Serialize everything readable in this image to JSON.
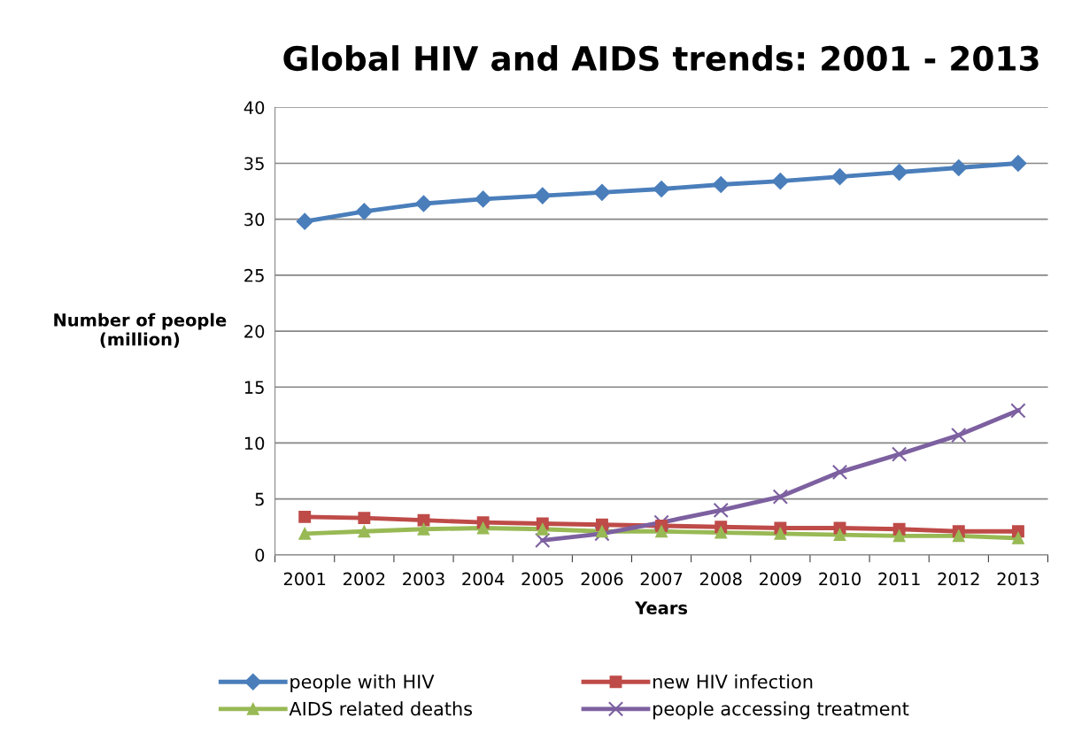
{
  "chart_data": {
    "type": "line",
    "title": "Global HIV and AIDS trends: 2001 - 2013",
    "xlabel": "Years",
    "ylabel": "Number of people\n(million)",
    "categories": [
      "2001",
      "2002",
      "2003",
      "2004",
      "2005",
      "2006",
      "2007",
      "2008",
      "2009",
      "2010",
      "2011",
      "2012",
      "2013"
    ],
    "series": [
      {
        "name": "people with HIV",
        "color": "#4a7ebb",
        "marker": "diamond",
        "values": [
          29.8,
          30.7,
          31.4,
          31.8,
          32.1,
          32.4,
          32.7,
          33.1,
          33.4,
          33.8,
          34.2,
          34.6,
          35.0
        ]
      },
      {
        "name": "new HIV infection",
        "color": "#be4b48",
        "marker": "square",
        "values": [
          3.4,
          3.3,
          3.1,
          2.9,
          2.8,
          2.7,
          2.6,
          2.5,
          2.4,
          2.4,
          2.3,
          2.1,
          2.1
        ]
      },
      {
        "name": "AIDS related deaths",
        "color": "#98b954",
        "marker": "triangle",
        "values": [
          1.9,
          2.1,
          2.3,
          2.4,
          2.3,
          2.1,
          2.1,
          2.0,
          1.9,
          1.8,
          1.7,
          1.7,
          1.5
        ]
      },
      {
        "name": "people accessing treatment",
        "color": "#7d60a0",
        "marker": "cross",
        "values": [
          null,
          null,
          null,
          null,
          1.3,
          1.9,
          2.9,
          4.0,
          5.2,
          7.4,
          9.0,
          10.7,
          12.9
        ]
      }
    ],
    "ylim": [
      0,
      40
    ],
    "yticks": [
      0,
      5,
      10,
      15,
      20,
      25,
      30,
      35,
      40
    ],
    "grid": "y",
    "legend": "bottom",
    "line_style": "solid"
  }
}
